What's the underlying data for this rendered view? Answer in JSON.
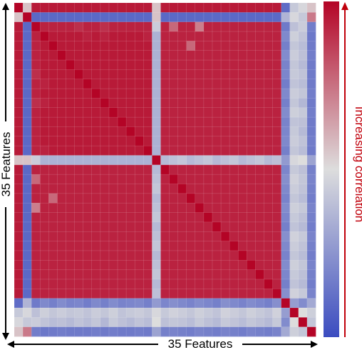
{
  "chart_data": {
    "type": "heatmap",
    "n_features": 35,
    "xlabel": "35 Features",
    "ylabel": "35 Features",
    "colorbar_label": "Increasing correlation",
    "colormap": {
      "low": "#3b4cc0",
      "mid": "#dddddd",
      "high": "#b40426"
    },
    "colorbar_arrow_color": "#c0000b",
    "grid": true,
    "values": [
      [
        1.0,
        0.56,
        0.95,
        0.95,
        0.95,
        0.95,
        0.95,
        0.95,
        0.95,
        0.95,
        0.95,
        0.95,
        0.95,
        0.95,
        0.95,
        0.95,
        0.56,
        0.95,
        0.95,
        0.95,
        0.95,
        0.95,
        0.95,
        0.95,
        0.95,
        0.95,
        0.95,
        0.95,
        0.95,
        0.95,
        0.95,
        0.11,
        0.43,
        0.48,
        0.56
      ],
      [
        0.56,
        1.0,
        0.1,
        0.1,
        0.1,
        0.1,
        0.1,
        0.1,
        0.1,
        0.1,
        0.1,
        0.1,
        0.1,
        0.1,
        0.1,
        0.1,
        0.56,
        0.1,
        0.1,
        0.1,
        0.1,
        0.1,
        0.1,
        0.1,
        0.1,
        0.1,
        0.1,
        0.1,
        0.1,
        0.1,
        0.1,
        0.36,
        0.48,
        0.43,
        0.73
      ],
      [
        0.95,
        0.1,
        1.0,
        0.93,
        0.93,
        0.93,
        0.93,
        0.9,
        0.93,
        0.93,
        0.9,
        0.93,
        0.93,
        0.93,
        0.93,
        0.93,
        0.44,
        0.93,
        0.77,
        0.93,
        0.93,
        0.72,
        0.93,
        0.93,
        0.93,
        0.93,
        0.93,
        0.93,
        0.93,
        0.93,
        0.93,
        0.16,
        0.4,
        0.44,
        0.17
      ],
      [
        0.95,
        0.1,
        0.93,
        1.0,
        0.95,
        0.95,
        0.95,
        0.95,
        0.93,
        0.95,
        0.93,
        0.95,
        0.95,
        0.95,
        0.95,
        0.93,
        0.35,
        0.93,
        0.93,
        0.93,
        0.93,
        0.93,
        0.93,
        0.93,
        0.93,
        0.93,
        0.93,
        0.93,
        0.93,
        0.93,
        0.93,
        0.21,
        0.45,
        0.41,
        0.15
      ],
      [
        0.95,
        0.1,
        0.93,
        0.95,
        1.0,
        0.95,
        0.95,
        0.95,
        0.95,
        0.95,
        0.95,
        0.95,
        0.95,
        0.95,
        0.95,
        0.95,
        0.35,
        0.93,
        0.93,
        0.93,
        0.77,
        0.93,
        0.93,
        0.93,
        0.93,
        0.93,
        0.93,
        0.93,
        0.93,
        0.93,
        0.93,
        0.18,
        0.42,
        0.39,
        0.16
      ],
      [
        0.95,
        0.1,
        0.93,
        0.95,
        0.95,
        1.0,
        0.95,
        0.95,
        0.95,
        0.95,
        0.95,
        0.95,
        0.95,
        0.95,
        0.95,
        0.95,
        0.35,
        0.93,
        0.93,
        0.93,
        0.93,
        0.93,
        0.93,
        0.93,
        0.93,
        0.93,
        0.93,
        0.93,
        0.93,
        0.93,
        0.93,
        0.22,
        0.44,
        0.4,
        0.17
      ],
      [
        0.95,
        0.1,
        0.93,
        0.95,
        0.95,
        0.95,
        1.0,
        0.95,
        0.95,
        0.95,
        0.95,
        0.95,
        0.95,
        0.95,
        0.95,
        0.95,
        0.35,
        0.93,
        0.93,
        0.93,
        0.93,
        0.93,
        0.93,
        0.93,
        0.93,
        0.93,
        0.93,
        0.93,
        0.93,
        0.93,
        0.93,
        0.19,
        0.42,
        0.38,
        0.16
      ],
      [
        0.95,
        0.1,
        0.9,
        0.95,
        0.95,
        0.95,
        0.95,
        1.0,
        0.95,
        0.95,
        0.95,
        0.95,
        0.95,
        0.95,
        0.95,
        0.95,
        0.35,
        0.93,
        0.93,
        0.93,
        0.93,
        0.93,
        0.93,
        0.93,
        0.93,
        0.93,
        0.93,
        0.93,
        0.93,
        0.93,
        0.93,
        0.2,
        0.43,
        0.41,
        0.16
      ],
      [
        0.95,
        0.1,
        0.93,
        0.93,
        0.95,
        0.95,
        0.95,
        0.95,
        1.0,
        0.95,
        0.95,
        0.95,
        0.95,
        0.95,
        0.95,
        0.95,
        0.35,
        0.93,
        0.93,
        0.93,
        0.93,
        0.93,
        0.93,
        0.93,
        0.93,
        0.93,
        0.93,
        0.93,
        0.93,
        0.93,
        0.93,
        0.17,
        0.41,
        0.39,
        0.16
      ],
      [
        0.95,
        0.1,
        0.93,
        0.95,
        0.95,
        0.95,
        0.95,
        0.95,
        0.95,
        1.0,
        0.95,
        0.95,
        0.95,
        0.95,
        0.95,
        0.95,
        0.35,
        0.93,
        0.93,
        0.93,
        0.93,
        0.93,
        0.93,
        0.93,
        0.93,
        0.93,
        0.93,
        0.93,
        0.93,
        0.93,
        0.93,
        0.21,
        0.44,
        0.42,
        0.17
      ],
      [
        0.95,
        0.1,
        0.9,
        0.93,
        0.95,
        0.95,
        0.95,
        0.95,
        0.95,
        0.95,
        1.0,
        0.95,
        0.95,
        0.95,
        0.95,
        0.95,
        0.35,
        0.93,
        0.93,
        0.93,
        0.93,
        0.93,
        0.93,
        0.93,
        0.93,
        0.93,
        0.93,
        0.93,
        0.93,
        0.93,
        0.93,
        0.18,
        0.42,
        0.37,
        0.16
      ],
      [
        0.95,
        0.1,
        0.93,
        0.95,
        0.95,
        0.95,
        0.95,
        0.95,
        0.95,
        0.95,
        0.95,
        1.0,
        0.95,
        0.95,
        0.95,
        0.95,
        0.35,
        0.93,
        0.93,
        0.93,
        0.93,
        0.93,
        0.93,
        0.93,
        0.93,
        0.93,
        0.93,
        0.93,
        0.93,
        0.93,
        0.93,
        0.22,
        0.45,
        0.43,
        0.17
      ],
      [
        0.95,
        0.1,
        0.93,
        0.95,
        0.95,
        0.95,
        0.95,
        0.95,
        0.95,
        0.95,
        0.95,
        0.95,
        1.0,
        0.95,
        0.95,
        0.95,
        0.35,
        0.93,
        0.93,
        0.93,
        0.93,
        0.93,
        0.93,
        0.93,
        0.93,
        0.93,
        0.93,
        0.93,
        0.93,
        0.93,
        0.93,
        0.19,
        0.41,
        0.4,
        0.16
      ],
      [
        0.95,
        0.1,
        0.93,
        0.95,
        0.95,
        0.95,
        0.95,
        0.95,
        0.95,
        0.95,
        0.95,
        0.95,
        0.95,
        1.0,
        0.95,
        0.95,
        0.35,
        0.93,
        0.93,
        0.93,
        0.93,
        0.93,
        0.93,
        0.93,
        0.93,
        0.93,
        0.93,
        0.93,
        0.93,
        0.93,
        0.93,
        0.2,
        0.43,
        0.38,
        0.16
      ],
      [
        0.95,
        0.1,
        0.93,
        0.95,
        0.95,
        0.95,
        0.95,
        0.95,
        0.95,
        0.95,
        0.95,
        0.95,
        0.95,
        0.95,
        1.0,
        0.95,
        0.35,
        0.93,
        0.93,
        0.93,
        0.93,
        0.93,
        0.93,
        0.93,
        0.93,
        0.93,
        0.93,
        0.93,
        0.93,
        0.93,
        0.93,
        0.21,
        0.44,
        0.41,
        0.17
      ],
      [
        0.95,
        0.1,
        0.93,
        0.93,
        0.95,
        0.95,
        0.95,
        0.95,
        0.95,
        0.95,
        0.95,
        0.95,
        0.95,
        0.95,
        0.95,
        1.0,
        0.35,
        0.93,
        0.93,
        0.93,
        0.93,
        0.93,
        0.93,
        0.93,
        0.93,
        0.93,
        0.93,
        0.93,
        0.93,
        0.93,
        0.93,
        0.18,
        0.42,
        0.39,
        0.16
      ],
      [
        0.56,
        0.56,
        0.44,
        0.35,
        0.35,
        0.35,
        0.35,
        0.35,
        0.35,
        0.35,
        0.35,
        0.35,
        0.35,
        0.35,
        0.35,
        0.35,
        1.0,
        0.38,
        0.4,
        0.42,
        0.38,
        0.4,
        0.42,
        0.38,
        0.4,
        0.42,
        0.38,
        0.4,
        0.42,
        0.38,
        0.4,
        0.27,
        0.48,
        0.5,
        0.3
      ],
      [
        0.95,
        0.1,
        0.93,
        0.93,
        0.93,
        0.93,
        0.93,
        0.93,
        0.93,
        0.93,
        0.93,
        0.93,
        0.93,
        0.93,
        0.93,
        0.93,
        0.38,
        1.0,
        0.93,
        0.93,
        0.93,
        0.93,
        0.93,
        0.93,
        0.93,
        0.93,
        0.93,
        0.93,
        0.93,
        0.93,
        0.93,
        0.2,
        0.43,
        0.4,
        0.18
      ],
      [
        0.95,
        0.1,
        0.77,
        0.93,
        0.93,
        0.93,
        0.93,
        0.93,
        0.93,
        0.93,
        0.93,
        0.93,
        0.93,
        0.93,
        0.93,
        0.93,
        0.4,
        0.93,
        1.0,
        0.93,
        0.93,
        0.93,
        0.93,
        0.93,
        0.93,
        0.93,
        0.93,
        0.93,
        0.93,
        0.93,
        0.93,
        0.23,
        0.46,
        0.42,
        0.19
      ],
      [
        0.95,
        0.1,
        0.93,
        0.93,
        0.93,
        0.93,
        0.93,
        0.93,
        0.93,
        0.93,
        0.93,
        0.93,
        0.93,
        0.93,
        0.93,
        0.93,
        0.42,
        0.93,
        0.93,
        1.0,
        0.93,
        0.93,
        0.93,
        0.93,
        0.93,
        0.93,
        0.93,
        0.93,
        0.93,
        0.93,
        0.93,
        0.21,
        0.44,
        0.41,
        0.18
      ],
      [
        0.95,
        0.1,
        0.93,
        0.93,
        0.77,
        0.93,
        0.93,
        0.93,
        0.93,
        0.93,
        0.93,
        0.93,
        0.93,
        0.93,
        0.93,
        0.93,
        0.38,
        0.93,
        0.93,
        0.93,
        1.0,
        0.93,
        0.93,
        0.93,
        0.93,
        0.93,
        0.93,
        0.93,
        0.93,
        0.93,
        0.93,
        0.19,
        0.42,
        0.39,
        0.17
      ],
      [
        0.95,
        0.1,
        0.72,
        0.93,
        0.93,
        0.93,
        0.93,
        0.93,
        0.93,
        0.93,
        0.93,
        0.93,
        0.93,
        0.93,
        0.93,
        0.93,
        0.4,
        0.93,
        0.93,
        0.93,
        0.93,
        1.0,
        0.93,
        0.93,
        0.93,
        0.93,
        0.93,
        0.93,
        0.93,
        0.93,
        0.93,
        0.22,
        0.45,
        0.43,
        0.19
      ],
      [
        0.95,
        0.1,
        0.93,
        0.93,
        0.93,
        0.93,
        0.93,
        0.93,
        0.93,
        0.93,
        0.93,
        0.93,
        0.93,
        0.93,
        0.93,
        0.93,
        0.42,
        0.93,
        0.93,
        0.93,
        0.93,
        0.93,
        1.0,
        0.93,
        0.93,
        0.93,
        0.93,
        0.93,
        0.93,
        0.93,
        0.93,
        0.2,
        0.43,
        0.4,
        0.18
      ],
      [
        0.95,
        0.1,
        0.93,
        0.93,
        0.93,
        0.93,
        0.93,
        0.93,
        0.93,
        0.93,
        0.93,
        0.93,
        0.93,
        0.93,
        0.93,
        0.93,
        0.38,
        0.93,
        0.93,
        0.93,
        0.93,
        0.93,
        0.93,
        1.0,
        0.93,
        0.93,
        0.93,
        0.93,
        0.93,
        0.93,
        0.93,
        0.18,
        0.41,
        0.38,
        0.17
      ],
      [
        0.95,
        0.1,
        0.93,
        0.93,
        0.93,
        0.93,
        0.93,
        0.93,
        0.93,
        0.93,
        0.93,
        0.93,
        0.93,
        0.93,
        0.93,
        0.93,
        0.4,
        0.93,
        0.93,
        0.93,
        0.93,
        0.93,
        0.93,
        0.93,
        1.0,
        0.93,
        0.93,
        0.93,
        0.93,
        0.93,
        0.93,
        0.23,
        0.46,
        0.43,
        0.19
      ],
      [
        0.95,
        0.1,
        0.93,
        0.93,
        0.93,
        0.93,
        0.93,
        0.93,
        0.93,
        0.93,
        0.93,
        0.93,
        0.93,
        0.93,
        0.93,
        0.93,
        0.42,
        0.93,
        0.93,
        0.93,
        0.93,
        0.93,
        0.93,
        0.93,
        0.93,
        1.0,
        0.93,
        0.93,
        0.93,
        0.93,
        0.93,
        0.21,
        0.44,
        0.41,
        0.18
      ],
      [
        0.95,
        0.1,
        0.93,
        0.93,
        0.93,
        0.93,
        0.93,
        0.93,
        0.93,
        0.93,
        0.93,
        0.93,
        0.93,
        0.93,
        0.93,
        0.93,
        0.38,
        0.93,
        0.93,
        0.93,
        0.93,
        0.93,
        0.93,
        0.93,
        0.93,
        0.93,
        1.0,
        0.93,
        0.93,
        0.93,
        0.93,
        0.19,
        0.42,
        0.39,
        0.17
      ],
      [
        0.95,
        0.1,
        0.93,
        0.93,
        0.93,
        0.93,
        0.93,
        0.93,
        0.93,
        0.93,
        0.93,
        0.93,
        0.93,
        0.93,
        0.93,
        0.93,
        0.4,
        0.93,
        0.93,
        0.93,
        0.93,
        0.93,
        0.93,
        0.93,
        0.93,
        0.93,
        0.93,
        1.0,
        0.93,
        0.93,
        0.93,
        0.22,
        0.45,
        0.42,
        0.19
      ],
      [
        0.95,
        0.1,
        0.93,
        0.93,
        0.93,
        0.93,
        0.93,
        0.93,
        0.93,
        0.93,
        0.93,
        0.93,
        0.93,
        0.93,
        0.93,
        0.93,
        0.42,
        0.93,
        0.93,
        0.93,
        0.93,
        0.93,
        0.93,
        0.93,
        0.93,
        0.93,
        0.93,
        0.93,
        1.0,
        0.93,
        0.93,
        0.2,
        0.43,
        0.4,
        0.18
      ],
      [
        0.95,
        0.1,
        0.93,
        0.93,
        0.93,
        0.93,
        0.93,
        0.93,
        0.93,
        0.93,
        0.93,
        0.93,
        0.93,
        0.93,
        0.93,
        0.93,
        0.38,
        0.93,
        0.93,
        0.93,
        0.93,
        0.93,
        0.93,
        0.93,
        0.93,
        0.93,
        0.93,
        0.93,
        0.93,
        1.0,
        0.93,
        0.18,
        0.41,
        0.38,
        0.17
      ],
      [
        0.95,
        0.1,
        0.93,
        0.93,
        0.93,
        0.93,
        0.93,
        0.93,
        0.93,
        0.93,
        0.93,
        0.93,
        0.93,
        0.93,
        0.93,
        0.93,
        0.4,
        0.93,
        0.93,
        0.93,
        0.93,
        0.93,
        0.93,
        0.93,
        0.93,
        0.93,
        0.93,
        0.93,
        0.93,
        0.93,
        1.0,
        0.23,
        0.46,
        0.43,
        0.19
      ],
      [
        0.11,
        0.36,
        0.16,
        0.21,
        0.18,
        0.22,
        0.19,
        0.2,
        0.17,
        0.21,
        0.18,
        0.22,
        0.19,
        0.2,
        0.21,
        0.18,
        0.27,
        0.2,
        0.23,
        0.21,
        0.19,
        0.22,
        0.2,
        0.18,
        0.23,
        0.21,
        0.19,
        0.22,
        0.2,
        0.18,
        0.23,
        1.0,
        0.28,
        0.22,
        0.32
      ],
      [
        0.43,
        0.48,
        0.4,
        0.45,
        0.42,
        0.44,
        0.42,
        0.43,
        0.41,
        0.44,
        0.42,
        0.45,
        0.41,
        0.43,
        0.44,
        0.42,
        0.48,
        0.43,
        0.46,
        0.44,
        0.42,
        0.45,
        0.43,
        0.41,
        0.46,
        0.44,
        0.42,
        0.45,
        0.43,
        0.41,
        0.46,
        0.28,
        1.0,
        0.5,
        0.45
      ],
      [
        0.48,
        0.43,
        0.44,
        0.41,
        0.39,
        0.4,
        0.38,
        0.41,
        0.39,
        0.42,
        0.37,
        0.43,
        0.4,
        0.38,
        0.41,
        0.39,
        0.5,
        0.4,
        0.42,
        0.41,
        0.39,
        0.43,
        0.4,
        0.38,
        0.43,
        0.41,
        0.39,
        0.42,
        0.4,
        0.38,
        0.43,
        0.22,
        0.5,
        1.0,
        0.42
      ],
      [
        0.56,
        0.73,
        0.17,
        0.15,
        0.16,
        0.17,
        0.16,
        0.16,
        0.16,
        0.17,
        0.16,
        0.17,
        0.16,
        0.16,
        0.17,
        0.16,
        0.3,
        0.18,
        0.19,
        0.18,
        0.17,
        0.19,
        0.18,
        0.17,
        0.19,
        0.18,
        0.17,
        0.19,
        0.18,
        0.17,
        0.19,
        0.32,
        0.45,
        0.42,
        1.0
      ]
    ]
  }
}
